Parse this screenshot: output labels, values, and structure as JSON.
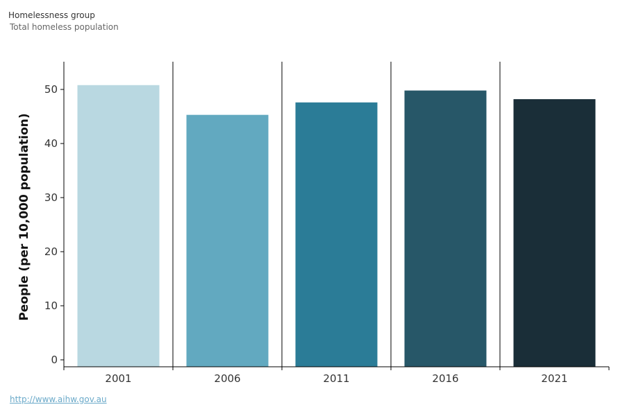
{
  "header": {
    "title": "Homelessness group",
    "subtitle": "Total homeless population"
  },
  "footer": {
    "link_text": "http://www.aihw.gov.au"
  },
  "chart_data": {
    "type": "bar",
    "title": "",
    "xlabel": "",
    "ylabel": "People (per 10,000 population)",
    "categories": [
      "2001",
      "2006",
      "2011",
      "2016",
      "2021"
    ],
    "values": [
      50.8,
      45.3,
      47.6,
      49.8,
      48.2
    ],
    "colors": [
      "#b9d8e1",
      "#62a9c0",
      "#2b7c97",
      "#275768",
      "#1a2e38"
    ],
    "ylim": [
      0,
      55
    ],
    "yticks": [
      0,
      10,
      20,
      30,
      40,
      50
    ],
    "grid": false,
    "legend": "none"
  }
}
